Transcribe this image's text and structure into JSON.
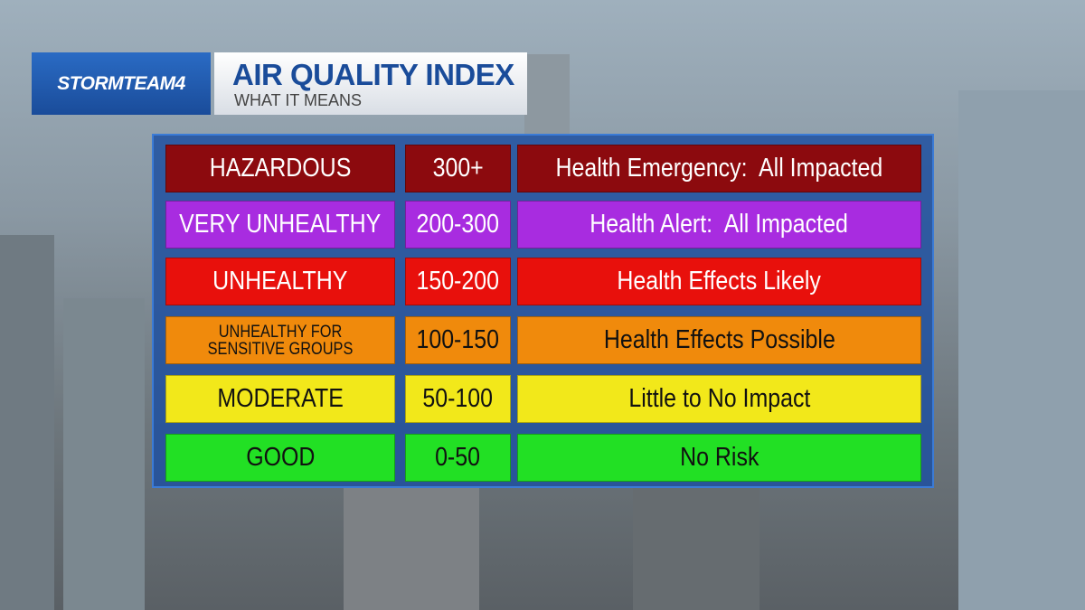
{
  "header": {
    "brand": "STORMTEAM4",
    "title": "AIR QUALITY INDEX",
    "subtitle": "WHAT IT MEANS"
  },
  "table": {
    "rows": [
      {
        "cells": [
          "HAZARDOUS",
          "300+",
          "Health Emergency:  All Impacted"
        ],
        "color": "#8c0a0e",
        "text_color": "#ffffff"
      },
      {
        "cells": [
          "VERY UNHEALTHY",
          "200-300",
          "Health Alert:  All Impacted"
        ],
        "color": "#a82ce0",
        "text_color": "#ffffff"
      },
      {
        "cells": [
          "UNHEALTHY",
          "150-200",
          "Health Effects Likely"
        ],
        "color": "#e8100c",
        "text_color": "#ffffff"
      },
      {
        "cells": [
          "UNHEALTHY FOR SENSITIVE GROUPS",
          "100-150",
          "Health Effects Possible"
        ],
        "color": "#f08a0c",
        "text_color": "#111111"
      },
      {
        "cells": [
          "MODERATE",
          "50-100",
          "Little to No Impact"
        ],
        "color": "#f2e81a",
        "text_color": "#111111"
      },
      {
        "cells": [
          "GOOD",
          "0-50",
          "No Risk"
        ],
        "color": "#22e024",
        "text_color": "#111111"
      }
    ]
  }
}
